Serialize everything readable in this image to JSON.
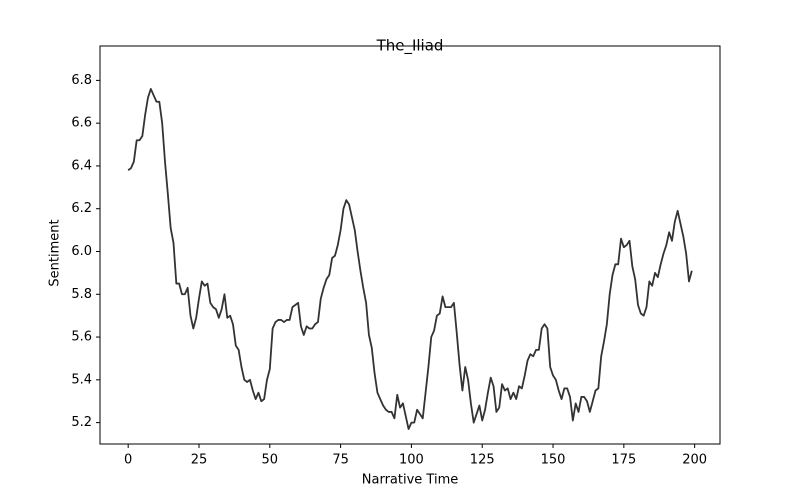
{
  "chart_data": {
    "type": "line",
    "title": "The_Iliad",
    "x_label": "Narrative Time",
    "y_label": "Sentiment",
    "x": [
      0,
      1,
      2,
      3,
      4,
      5,
      6,
      7,
      8,
      9,
      10,
      11,
      12,
      13,
      14,
      15,
      16,
      17,
      18,
      19,
      20,
      21,
      22,
      23,
      24,
      25,
      26,
      27,
      28,
      29,
      30,
      31,
      32,
      33,
      34,
      35,
      36,
      37,
      38,
      39,
      40,
      41,
      42,
      43,
      44,
      45,
      46,
      47,
      48,
      49,
      50,
      51,
      52,
      53,
      54,
      55,
      56,
      57,
      58,
      59,
      60,
      61,
      62,
      63,
      64,
      65,
      66,
      67,
      68,
      69,
      70,
      71,
      72,
      73,
      74,
      75,
      76,
      77,
      78,
      79,
      80,
      81,
      82,
      83,
      84,
      85,
      86,
      87,
      88,
      89,
      90,
      91,
      92,
      93,
      94,
      95,
      96,
      97,
      98,
      99,
      100,
      101,
      102,
      103,
      104,
      105,
      106,
      107,
      108,
      109,
      110,
      111,
      112,
      113,
      114,
      115,
      116,
      117,
      118,
      119,
      120,
      121,
      122,
      123,
      124,
      125,
      126,
      127,
      128,
      129,
      130,
      131,
      132,
      133,
      134,
      135,
      136,
      137,
      138,
      139,
      140,
      141,
      142,
      143,
      144,
      145,
      146,
      147,
      148,
      149,
      150,
      151,
      152,
      153,
      154,
      155,
      156,
      157,
      158,
      159,
      160,
      161,
      162,
      163,
      164,
      165,
      166,
      167,
      168,
      169,
      170,
      171,
      172,
      173,
      174,
      175,
      176,
      177,
      178,
      179,
      180,
      181,
      182,
      183,
      184,
      185,
      186,
      187,
      188,
      189,
      190,
      191,
      192,
      193,
      194,
      195,
      196,
      197,
      198,
      199
    ],
    "series": [
      {
        "color": "#333333",
        "values": [
          6.38,
          6.39,
          6.42,
          6.52,
          6.52,
          6.54,
          6.64,
          6.72,
          6.76,
          6.73,
          6.7,
          6.7,
          6.6,
          6.42,
          6.27,
          6.11,
          6.04,
          5.85,
          5.85,
          5.8,
          5.8,
          5.83,
          5.7,
          5.64,
          5.69,
          5.78,
          5.86,
          5.84,
          5.85,
          5.76,
          5.74,
          5.73,
          5.69,
          5.73,
          5.8,
          5.69,
          5.7,
          5.66,
          5.56,
          5.54,
          5.46,
          5.4,
          5.39,
          5.4,
          5.35,
          5.31,
          5.34,
          5.3,
          5.31,
          5.4,
          5.45,
          5.64,
          5.67,
          5.68,
          5.68,
          5.67,
          5.68,
          5.68,
          5.74,
          5.75,
          5.76,
          5.65,
          5.61,
          5.65,
          5.64,
          5.64,
          5.66,
          5.67,
          5.78,
          5.83,
          5.87,
          5.89,
          5.97,
          5.98,
          6.03,
          6.1,
          6.2,
          6.24,
          6.22,
          6.16,
          6.1,
          6.0,
          5.91,
          5.83,
          5.76,
          5.61,
          5.55,
          5.43,
          5.34,
          5.31,
          5.28,
          5.26,
          5.25,
          5.25,
          5.22,
          5.33,
          5.27,
          5.29,
          5.23,
          5.17,
          5.2,
          5.2,
          5.26,
          5.24,
          5.22,
          5.34,
          5.46,
          5.6,
          5.63,
          5.7,
          5.71,
          5.79,
          5.74,
          5.74,
          5.74,
          5.76,
          5.62,
          5.47,
          5.35,
          5.46,
          5.4,
          5.29,
          5.2,
          5.24,
          5.28,
          5.21,
          5.26,
          5.34,
          5.41,
          5.37,
          5.25,
          5.27,
          5.38,
          5.35,
          5.36,
          5.31,
          5.34,
          5.31,
          5.37,
          5.36,
          5.42,
          5.49,
          5.52,
          5.51,
          5.54,
          5.54,
          5.64,
          5.66,
          5.64,
          5.46,
          5.42,
          5.4,
          5.35,
          5.31,
          5.36,
          5.36,
          5.32,
          5.21,
          5.29,
          5.25,
          5.32,
          5.32,
          5.3,
          5.25,
          5.3,
          5.35,
          5.36,
          5.51,
          5.58,
          5.66,
          5.8,
          5.89,
          5.94,
          5.94,
          6.06,
          6.02,
          6.03,
          6.05,
          5.93,
          5.87,
          5.75,
          5.71,
          5.7,
          5.74,
          5.86,
          5.84,
          5.9,
          5.88,
          5.94,
          5.99,
          6.03,
          6.09,
          6.05,
          6.14,
          6.19,
          6.13,
          6.07,
          5.99,
          5.86,
          5.91
        ]
      }
    ],
    "xlim": [
      -9.95,
      208.95
    ],
    "ylim": [
      5.1,
      6.9
    ],
    "xticks": [
      0,
      25,
      50,
      75,
      100,
      125,
      150,
      175,
      200
    ],
    "yticks": [
      5.2,
      5.4,
      5.6,
      5.8,
      {
        "value": 6,
        "label": "6.0"
      },
      6.2,
      6.4,
      6.6,
      6.8
    ],
    "grid": false
  }
}
